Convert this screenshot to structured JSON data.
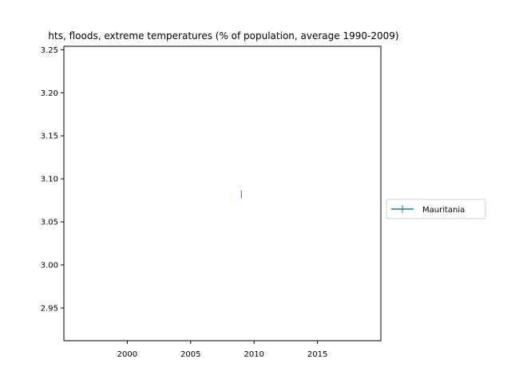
{
  "chart_data": {
    "type": "line",
    "title": "hts, floods, extreme temperatures (% of population, average 1990-2009)",
    "xlabel": "",
    "ylabel": "",
    "x_ticks": [
      "2000",
      "2005",
      "2010",
      "2015"
    ],
    "y_ticks": [
      "2.95",
      "3.00",
      "3.05",
      "3.10",
      "3.15",
      "3.20",
      "3.25"
    ],
    "xlim": [
      1995,
      2020
    ],
    "ylim": [
      2.912,
      3.254
    ],
    "grid": false,
    "legend_position": "center-right-outside",
    "series": [
      {
        "name": "Mauritania",
        "color": "#1f77b4",
        "marker": "+",
        "points": [
          {
            "x": 2009,
            "y": 3.082
          }
        ]
      }
    ]
  }
}
